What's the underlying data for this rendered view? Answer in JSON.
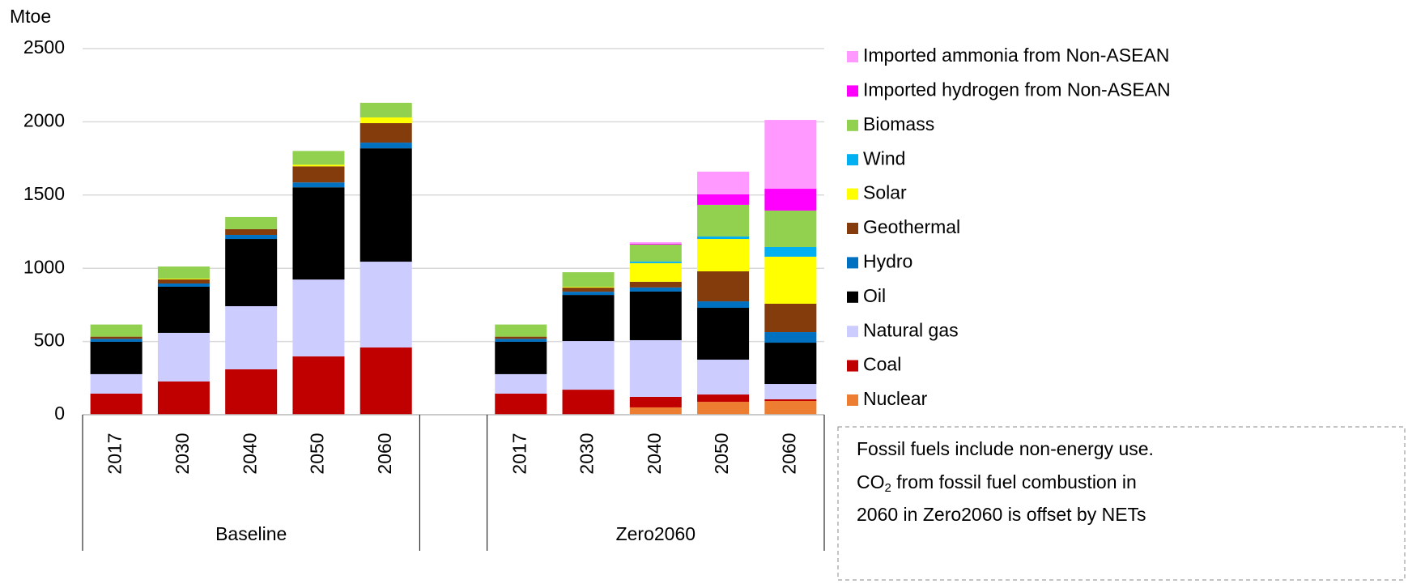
{
  "chart_data": {
    "type": "stacked_bar",
    "y_unit": "Mtoe",
    "categories": [
      "2017",
      "2030",
      "2040",
      "2050",
      "2060",
      null,
      "2017",
      "2030",
      "2040",
      "2050",
      "2060"
    ],
    "groups": [
      "Baseline",
      "Zero2060"
    ],
    "ylim": [
      0,
      2500
    ],
    "yticks": [
      0,
      500,
      1000,
      1500,
      2000,
      2500
    ],
    "grid": true,
    "series": [
      {
        "name": "Nuclear",
        "color": "#ed7d31",
        "values": [
          0,
          0,
          0,
          0,
          0,
          null,
          0,
          0,
          50,
          88,
          94
        ]
      },
      {
        "name": "Coal",
        "color": "#c00000",
        "values": [
          144,
          227,
          310,
          398,
          459,
          null,
          144,
          171,
          72,
          50,
          11
        ]
      },
      {
        "name": "Natural gas",
        "color": "#ccccff",
        "values": [
          133,
          332,
          431,
          525,
          586,
          null,
          133,
          332,
          387,
          238,
          105
        ]
      },
      {
        "name": "Oil",
        "color": "#000000",
        "values": [
          221,
          315,
          459,
          630,
          774,
          null,
          221,
          315,
          332,
          354,
          282
        ]
      },
      {
        "name": "Hydro",
        "color": "#0070c0",
        "values": [
          20,
          22,
          28,
          33,
          39,
          null,
          20,
          22,
          28,
          44,
          72
        ]
      },
      {
        "name": "Geothermal",
        "color": "#843c0c",
        "values": [
          15,
          28,
          39,
          110,
          133,
          null,
          15,
          28,
          39,
          205,
          194
        ]
      },
      {
        "name": "Solar",
        "color": "#ffff00",
        "values": [
          0,
          5,
          0,
          11,
          39,
          null,
          0,
          5,
          127,
          221,
          321
        ]
      },
      {
        "name": "Wind",
        "color": "#00b0f0",
        "values": [
          0,
          0,
          0,
          0,
          0,
          null,
          0,
          0,
          11,
          17,
          66
        ]
      },
      {
        "name": "Biomass",
        "color": "#92d050",
        "values": [
          83,
          83,
          83,
          94,
          100,
          null,
          83,
          100,
          116,
          216,
          249
        ]
      },
      {
        "name": "Imported hydrogen from Non-ASEAN",
        "color": "#ff00ff",
        "values": [
          0,
          0,
          0,
          0,
          0,
          null,
          0,
          0,
          5,
          72,
          149
        ]
      },
      {
        "name": "Imported ammonia from Non-ASEAN",
        "color": "#ff99ff",
        "values": [
          0,
          0,
          0,
          0,
          0,
          null,
          0,
          0,
          11,
          155,
          470
        ]
      }
    ],
    "note": {
      "line1": "Fossil fuels include non-energy use.",
      "line2_prefix": "CO",
      "line2_sub": "2",
      "line2_rest": " from fossil fuel combustion in",
      "line3": "2060 in Zero2060 is offset by NETs"
    }
  }
}
